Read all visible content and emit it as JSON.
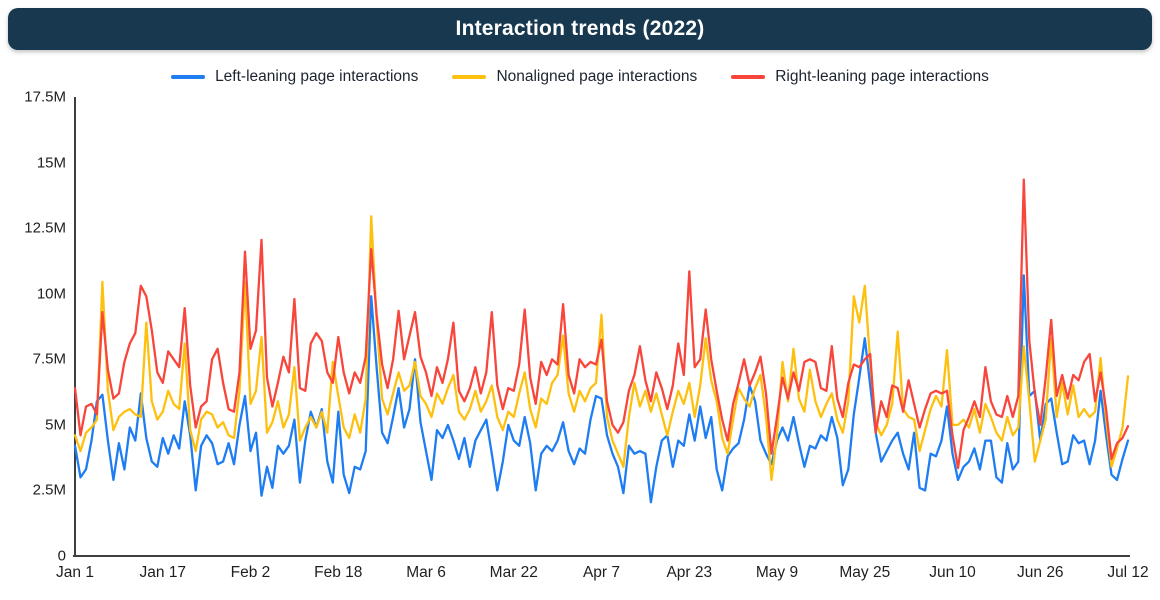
{
  "title": "Interaction trends (2022)",
  "colors": {
    "title_bar_bg": "#17384F",
    "title_text": "#FFFFFF",
    "axis": "#3F3F3F",
    "tick_text": "#1F1F1F",
    "blue": "#1E7DF2",
    "yellow": "#FEC00F",
    "red": "#F8463C"
  },
  "legend": [
    {
      "label": "Left-leaning page interactions",
      "color": "#1E7DF2"
    },
    {
      "label": "Nonaligned page interactions",
      "color": "#FEC00F"
    },
    {
      "label": "Right-leaning page interactions",
      "color": "#F8463C"
    }
  ],
  "chart_data": {
    "type": "line",
    "title": "Interaction trends (2022)",
    "x_unit": "daily, day 0 = Jan 1 2022 through day 192 = Jul 12 2022",
    "values_unit": "interactions (millions)",
    "grid": false,
    "legend_position": "top",
    "ylim": [
      0,
      17.5
    ],
    "y_tick_values": [
      0,
      2.5,
      5,
      7.5,
      10,
      12.5,
      15,
      17.5
    ],
    "y_tick_labels": [
      "0",
      "2.5M",
      "5M",
      "7.5M",
      "10M",
      "12.5M",
      "15M",
      "17.5M"
    ],
    "x_tick_positions": [
      0,
      16,
      32,
      48,
      64,
      80,
      96,
      112,
      128,
      144,
      160,
      176,
      192
    ],
    "x_tick_labels": [
      "Jan 1",
      "Jan 17",
      "Feb 2",
      "Feb 18",
      "Mar 6",
      "Mar 22",
      "Apr 7",
      "Apr 23",
      "May 9",
      "May 25",
      "Jun 10",
      "Jun 26",
      "Jul 12"
    ],
    "series": [
      {
        "name": "Left-leaning page interactions",
        "color": "#1E7DF2",
        "values": [
          4.2,
          3.0,
          3.3,
          4.4,
          5.9,
          6.15,
          4.4,
          2.9,
          4.3,
          3.3,
          4.9,
          4.4,
          6.2,
          4.5,
          3.6,
          3.4,
          4.5,
          3.9,
          4.6,
          4.1,
          5.9,
          4.6,
          2.5,
          4.2,
          4.6,
          4.3,
          3.5,
          3.6,
          4.3,
          3.5,
          5.0,
          6.1,
          4.0,
          4.7,
          2.3,
          3.4,
          2.6,
          4.2,
          3.9,
          4.2,
          5.2,
          2.8,
          4.4,
          5.5,
          4.9,
          5.6,
          3.6,
          2.8,
          5.5,
          3.1,
          2.4,
          3.4,
          3.3,
          4.0,
          9.9,
          7.2,
          4.7,
          4.3,
          5.3,
          6.4,
          4.9,
          5.6,
          7.5,
          5.1,
          4.0,
          2.9,
          4.8,
          4.5,
          5.0,
          4.4,
          3.7,
          4.5,
          3.4,
          4.4,
          4.8,
          5.2,
          3.9,
          2.5,
          3.6,
          5.0,
          4.4,
          4.2,
          5.3,
          4.3,
          2.5,
          3.9,
          4.2,
          4.0,
          4.4,
          5.1,
          4.0,
          3.5,
          4.1,
          3.9,
          5.2,
          6.1,
          6.0,
          4.6,
          3.9,
          3.4,
          2.4,
          4.2,
          3.9,
          4.0,
          3.9,
          2.05,
          3.4,
          4.4,
          4.6,
          3.4,
          4.4,
          4.2,
          5.4,
          4.4,
          5.7,
          4.5,
          5.3,
          3.3,
          2.5,
          3.8,
          4.1,
          4.3,
          5.2,
          6.5,
          5.9,
          4.4,
          3.9,
          3.5,
          4.4,
          4.9,
          4.4,
          5.3,
          4.3,
          3.4,
          4.2,
          4.1,
          4.6,
          4.4,
          5.3,
          4.5,
          2.7,
          3.3,
          5.4,
          6.8,
          8.3,
          6.5,
          4.7,
          3.6,
          4.0,
          4.4,
          4.7,
          3.9,
          3.3,
          4.7,
          2.6,
          2.5,
          3.9,
          3.8,
          4.4,
          5.7,
          3.9,
          2.9,
          3.4,
          3.6,
          4.1,
          3.3,
          4.4,
          4.4,
          3.0,
          2.8,
          4.3,
          3.3,
          3.6,
          10.7,
          6.1,
          6.3,
          4.4,
          5.8,
          6.0,
          4.7,
          3.5,
          3.6,
          4.6,
          4.3,
          4.4,
          3.5,
          4.4,
          6.3,
          4.6,
          3.1,
          2.9,
          3.7,
          4.4
        ]
      },
      {
        "name": "Nonaligned page interactions",
        "color": "#FEC00F",
        "values": [
          4.6,
          4.0,
          4.7,
          4.9,
          5.2,
          10.45,
          6.3,
          4.8,
          5.3,
          5.5,
          5.6,
          5.4,
          5.3,
          8.9,
          5.9,
          5.2,
          5.5,
          6.3,
          5.8,
          5.6,
          8.1,
          4.8,
          4.0,
          5.2,
          5.5,
          5.4,
          4.9,
          5.1,
          4.6,
          4.5,
          6.3,
          10.45,
          5.8,
          6.3,
          8.35,
          4.7,
          5.1,
          5.9,
          4.9,
          5.4,
          7.2,
          4.4,
          4.9,
          5.3,
          4.9,
          5.5,
          4.7,
          7.4,
          6.1,
          4.9,
          4.5,
          5.4,
          4.7,
          6.0,
          12.95,
          9.0,
          6.0,
          5.4,
          6.2,
          7.0,
          6.3,
          6.5,
          7.4,
          6.1,
          5.8,
          5.3,
          6.2,
          5.8,
          6.4,
          6.9,
          5.5,
          5.2,
          5.6,
          6.3,
          5.5,
          5.9,
          6.5,
          5.3,
          4.8,
          5.5,
          5.3,
          6.2,
          7.0,
          5.6,
          4.9,
          6.0,
          5.8,
          6.6,
          6.9,
          8.4,
          6.2,
          5.5,
          6.3,
          5.9,
          6.4,
          6.6,
          9.2,
          5.3,
          4.4,
          3.9,
          3.4,
          5.3,
          6.6,
          5.7,
          6.3,
          5.5,
          6.2,
          5.4,
          4.6,
          5.5,
          6.3,
          5.8,
          6.6,
          5.3,
          6.5,
          8.3,
          6.7,
          5.9,
          4.5,
          3.9,
          5.2,
          6.4,
          6.0,
          5.7,
          6.4,
          6.9,
          5.3,
          2.9,
          4.6,
          7.4,
          5.9,
          7.9,
          6.0,
          5.5,
          7.1,
          5.9,
          5.3,
          5.8,
          6.2,
          5.2,
          4.7,
          5.9,
          9.9,
          8.9,
          10.3,
          7.4,
          5.1,
          4.6,
          5.0,
          5.8,
          8.55,
          5.6,
          5.3,
          5.2,
          4.0,
          4.8,
          5.6,
          6.1,
          5.7,
          7.85,
          5.0,
          5.0,
          5.2,
          4.9,
          5.6,
          4.7,
          5.8,
          5.3,
          4.7,
          4.4,
          5.3,
          4.6,
          4.9,
          8.0,
          5.9,
          3.6,
          4.4,
          5.2,
          8.3,
          5.3,
          6.6,
          5.4,
          6.5,
          5.3,
          5.6,
          5.3,
          5.5,
          7.55,
          5.2,
          3.4,
          4.1,
          4.9,
          6.85
        ]
      },
      {
        "name": "Right-leaning page interactions",
        "color": "#F8463C",
        "values": [
          6.4,
          4.6,
          5.7,
          5.8,
          5.4,
          9.3,
          7.1,
          6.0,
          6.2,
          7.4,
          8.1,
          8.5,
          10.3,
          9.9,
          8.6,
          7.0,
          6.6,
          7.8,
          7.5,
          7.2,
          9.45,
          6.5,
          4.9,
          5.7,
          5.9,
          7.5,
          7.9,
          6.6,
          5.6,
          5.5,
          7.0,
          11.6,
          7.9,
          8.6,
          12.05,
          6.8,
          5.7,
          6.6,
          7.6,
          7.0,
          9.8,
          6.4,
          6.3,
          8.1,
          8.5,
          8.2,
          7.0,
          6.6,
          8.35,
          7.0,
          6.2,
          7.0,
          6.6,
          7.6,
          11.7,
          9.2,
          7.3,
          6.4,
          7.5,
          9.35,
          7.5,
          8.4,
          9.3,
          7.6,
          7.0,
          6.1,
          7.2,
          6.6,
          7.5,
          8.9,
          6.3,
          5.9,
          6.4,
          7.2,
          6.2,
          7.0,
          9.3,
          6.5,
          5.6,
          6.4,
          6.3,
          7.3,
          9.4,
          6.8,
          5.8,
          7.4,
          6.9,
          7.5,
          7.3,
          9.6,
          6.9,
          6.2,
          7.5,
          7.2,
          7.4,
          7.3,
          8.25,
          5.9,
          5.0,
          4.7,
          5.1,
          6.3,
          6.9,
          8.0,
          6.7,
          5.9,
          7.0,
          6.4,
          5.6,
          6.5,
          8.1,
          6.9,
          10.85,
          7.2,
          7.5,
          9.4,
          7.5,
          6.3,
          5.2,
          4.4,
          5.8,
          6.6,
          7.5,
          6.5,
          7.0,
          7.6,
          6.2,
          3.9,
          5.3,
          6.8,
          6.0,
          7.0,
          6.3,
          7.4,
          7.5,
          7.4,
          6.4,
          6.3,
          8.0,
          6.0,
          5.3,
          6.6,
          7.3,
          7.2,
          7.5,
          7.7,
          4.7,
          5.9,
          5.3,
          6.5,
          6.4,
          5.5,
          6.7,
          5.8,
          4.9,
          5.6,
          6.2,
          6.3,
          6.2,
          6.3,
          4.6,
          3.35,
          4.8,
          5.3,
          5.9,
          5.3,
          7.2,
          5.9,
          5.4,
          5.3,
          6.1,
          5.3,
          6.1,
          14.35,
          8.2,
          6.2,
          5.0,
          6.8,
          9.0,
          6.1,
          6.9,
          6.0,
          6.9,
          6.7,
          7.4,
          7.7,
          5.9,
          7.0,
          5.6,
          3.7,
          4.3,
          4.5,
          4.95
        ]
      }
    ]
  }
}
